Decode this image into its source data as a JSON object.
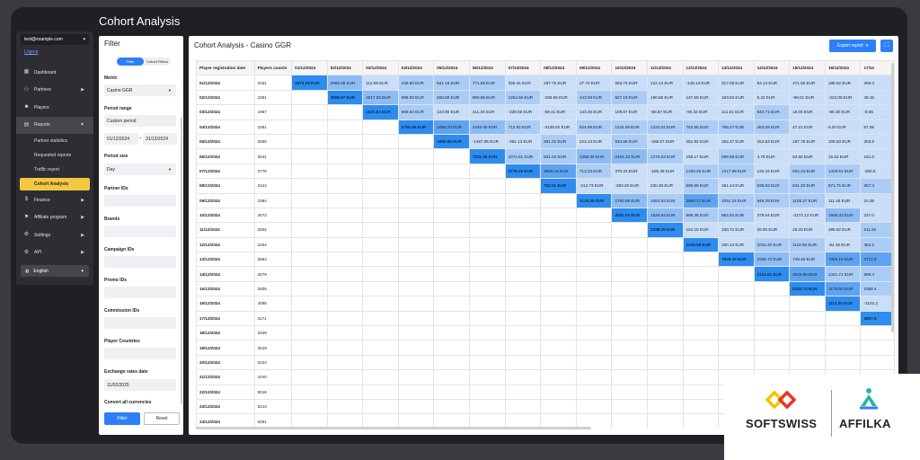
{
  "page_title": "Cohort Analysis",
  "sidebar": {
    "user_email": "test@example.com",
    "logout": "Logout",
    "items": [
      {
        "label": "Dashboard",
        "icon": "dashboard-icon",
        "arrow": false
      },
      {
        "label": "Partners",
        "icon": "people-icon",
        "arrow": true
      },
      {
        "label": "Players",
        "icon": "player-icon",
        "arrow": false
      },
      {
        "label": "Reports",
        "icon": "report-icon",
        "arrow": true
      }
    ],
    "sub_items": [
      "Partner statistics",
      "Requested reports",
      "Traffic report",
      "Cohort Analysis"
    ],
    "items2": [
      {
        "label": "Finance",
        "icon": "finance-icon"
      },
      {
        "label": "Affiliate program",
        "icon": "affiliate-icon"
      },
      {
        "label": "Settings",
        "icon": "gear-icon"
      },
      {
        "label": "API",
        "icon": "api-icon"
      }
    ],
    "language": "English"
  },
  "filter": {
    "title": "Filter",
    "tab_filter": "Filter",
    "tab_cohort": "Cohort Filters",
    "metric_label": "Metric",
    "metric_value": "Casino GGR",
    "period_range_label": "Period range",
    "period_range_value": "Custom period",
    "date_from": "01/12/2024",
    "date_to": "31/12/2024",
    "period_size_label": "Period size",
    "period_size_value": "Day",
    "partner_ids": "Partner IDs",
    "brands": "Brands",
    "campaign_ids": "Campaign IDs",
    "promo_ids": "Promo IDs",
    "commission_ids": "Commission IDs",
    "player_countries": "Player Countries",
    "exchange_label": "Exchange rates date",
    "exchange_value": "11/02/2025",
    "convert_label": "Convert all currencies",
    "btn_filter": "Filter",
    "btn_reset": "Reset"
  },
  "main": {
    "title": "Cohort Analysis - Casino GGR",
    "export_label": "Export report",
    "table": {
      "headers": [
        "Player registration date",
        "Players counts",
        "01/12/2024",
        "02/12/2024",
        "03/12/2024",
        "04/12/2024",
        "05/12/2024",
        "06/12/2024",
        "07/12/2024",
        "08/12/2024",
        "09/12/2024",
        "10/12/2024",
        "11/12/2024",
        "12/12/2024",
        "13/12/2024",
        "14/12/2024",
        "15/12/2024",
        "16/12/2024",
        "17/12"
      ],
      "rows": [
        {
          "date": "01/12/2024",
          "count": "3161",
          "cells": [
            "3673.29 EUR",
            "2965.28 EUR",
            "112.59 EUR",
            "436.80 EUR",
            "841.16 EUR",
            "771.59 EUR",
            "336.44 EUR",
            "287.76 EUR",
            "27.70 EUR",
            "293.76 EUR",
            "124.14 EUR",
            "-149.13 EUR",
            "317.06 EUR",
            "53.14 EUR",
            "371.50 EUR",
            "188.52 EUR",
            "369.3"
          ]
        },
        {
          "date": "02/12/2024",
          "count": "2361",
          "cells": [
            "",
            "3898.97 EUR",
            "2017.26 EUR",
            "995.83 EUR",
            "600.69 EUR",
            "890.89 EUR",
            "1254.56 EUR",
            "-259.56 EUR",
            "443.09 EUR",
            "627.19 EUR",
            "190.58 EUR",
            "147.69 EUR",
            "163.62 EUR",
            "5.42 EUR",
            "-98.01 EUR",
            "-222.09 EUR",
            "48.15"
          ]
        },
        {
          "date": "03/12/2024",
          "count": "1967",
          "cells": [
            "",
            "",
            "1621.84 EUR",
            "869.64 EUR",
            "223.90 EUR",
            "211.40 EUR",
            "-238.68 EUR",
            "-69.41 EUR",
            "143.35 EUR",
            "109.87 EUR",
            "-68.87 EUR",
            "-90.33 EUR",
            "211.01 EUR",
            "540.71 EUR",
            "18.05 EUR",
            "-98.38 EUR",
            "-9.85"
          ]
        },
        {
          "date": "04/12/2024",
          "count": "2361",
          "cells": [
            "",
            "",
            "",
            "5756.99 EUR",
            "4098.70 EUR",
            "2433.45 EUR",
            "712.92 EUR",
            "-3138.82 EUR",
            "624.99 EUR",
            "1126.38 EUR",
            "1222.04 EUR",
            "763.65 EUR",
            "768.27 EUR",
            "463.59 EUR",
            "47.21 EUR",
            "6.20 EUR",
            "67.09"
          ]
        },
        {
          "date": "05/12/2024",
          "count": "2566",
          "cells": [
            "",
            "",
            "",
            "",
            "2656.96 EUR",
            "-1467.85 EUR",
            "-361.13 EUR",
            "891.22 EUR",
            "223.13 EUR",
            "934.58 EUR",
            "-286.07 EUR",
            "351.92 EUR",
            "282.37 EUR",
            "254.53 EUR",
            "197.75 EUR",
            "109.83 EUR",
            "303.9"
          ]
        },
        {
          "date": "06/12/2024",
          "count": "2541",
          "cells": [
            "",
            "",
            "",
            "",
            "",
            "7231.05 EUR",
            "1074.61 EUR",
            "831.52 EUR",
            "2388.36 EUR",
            "2464.33 EUR",
            "1275.83 EUR",
            "158.17 EUR",
            "899.86 EUR",
            "4.75 EUR",
            "84.55 EUR",
            "15.62 EUR",
            "191.6"
          ]
        },
        {
          "date": "07/12/2024",
          "count": "2776",
          "cells": [
            "",
            "",
            "",
            "",
            "",
            "",
            "3776.26 EUR",
            "3008.15 EUR",
            "713.23 EUR",
            "370.33 EUR",
            "-186.38 EUR",
            "1256.35 EUR",
            "1217.99 EUR",
            "133.16 EUR",
            "804.34 EUR",
            "1439.51 EUR",
            "-250.5"
          ]
        },
        {
          "date": "08/12/2024",
          "count": "2444",
          "cells": [
            "",
            "",
            "",
            "",
            "",
            "",
            "",
            "752.81 EUR",
            "-212.73 EUR",
            "-283.20 EUR",
            "230.38 EUR",
            "899.99 EUR",
            "361.14 EUR",
            "636.83 EUR",
            "641.20 EUR",
            "871.75 EUR",
            "657.3"
          ]
        },
        {
          "date": "09/12/2024",
          "count": "2384",
          "cells": [
            "",
            "",
            "",
            "",
            "",
            "",
            "",
            "",
            "2128.06 EUR",
            "1793.08 EUR",
            "1084.93 EUR",
            "3689.17 EUR",
            "1051.24 EUR",
            "948.28 EUR",
            "1105.37 EUR",
            "111.45 EUR",
            "10.35"
          ]
        },
        {
          "date": "10/12/2024",
          "count": "2672",
          "cells": [
            "",
            "",
            "",
            "",
            "",
            "",
            "",
            "",
            "",
            "2591.94 EUR",
            "1526.94 EUR",
            "689.38 EUR",
            "864.50 EUR",
            "379.54 EUR",
            "-2172.12 EUR",
            "1906.33 EUR",
            "237.0"
          ]
        },
        {
          "date": "11/12/2024",
          "count": "2502",
          "cells": [
            "",
            "",
            "",
            "",
            "",
            "",
            "",
            "",
            "",
            "",
            "2198.29 EUR",
            "164.19 EUR",
            "330.71 EUR",
            "26.80 EUR",
            "26.20 EUR",
            "289.62 EUR",
            "511.92"
          ]
        },
        {
          "date": "12/12/2024",
          "count": "2454",
          "cells": [
            "",
            "",
            "",
            "",
            "",
            "",
            "",
            "",
            "",
            "",
            "",
            "3249.68 EUR",
            "260.12 EUR",
            "1010.40 EUR",
            "1119.56 EUR",
            "-64.49 EUR",
            "463.2"
          ]
        },
        {
          "date": "13/12/2024",
          "count": "2664",
          "cells": [
            "",
            "",
            "",
            "",
            "",
            "",
            "",
            "",
            "",
            "",
            "",
            "",
            "7849.48 EUR",
            "2308.73 EUR",
            "749.46 EUR",
            "7366.19 EUR",
            "3713.9"
          ]
        },
        {
          "date": "14/12/2024",
          "count": "2579",
          "cells": [
            "",
            "",
            "",
            "",
            "",
            "",
            "",
            "",
            "",
            "",
            "",
            "",
            "",
            "2104.61 EUR",
            "3044.96 EUR",
            "1341.71 EUR",
            "588.4"
          ]
        },
        {
          "date": "15/12/2024",
          "count": "2835",
          "cells": [
            "",
            "",
            "",
            "",
            "",
            "",
            "",
            "",
            "",
            "",
            "",
            "",
            "",
            "",
            "5292.74 EUR",
            "3175.50 EUR",
            "1058.4"
          ]
        },
        {
          "date": "16/12/2024",
          "count": "4095",
          "cells": [
            "",
            "",
            "",
            "",
            "",
            "",
            "",
            "",
            "",
            "",
            "",
            "",
            "",
            "",
            "",
            "1113.30 EUR",
            "-2101.2"
          ]
        },
        {
          "date": "17/12/2024",
          "count": "4171",
          "cells": [
            "",
            "",
            "",
            "",
            "",
            "",
            "",
            "",
            "",
            "",
            "",
            "",
            "",
            "",
            "",
            "",
            "2857.8"
          ]
        },
        {
          "date": "18/12/2024",
          "count": "3349",
          "cells": []
        },
        {
          "date": "19/12/2024",
          "count": "3019",
          "cells": []
        },
        {
          "date": "20/12/2024",
          "count": "3424",
          "cells": []
        },
        {
          "date": "21/12/2024",
          "count": "4240",
          "cells": []
        },
        {
          "date": "22/12/2024",
          "count": "5016",
          "cells": []
        },
        {
          "date": "23/12/2024",
          "count": "5213",
          "cells": []
        },
        {
          "date": "24/12/2024",
          "count": "6281",
          "cells": []
        }
      ]
    }
  },
  "branding": {
    "softswiss": "SOFTSWISS",
    "affilka": "AFFILKA",
    "softswiss_colors": [
      "#f5c400",
      "#e8352a"
    ],
    "affilka_colors": [
      "#26b5a8",
      "#2d7ff9"
    ]
  }
}
